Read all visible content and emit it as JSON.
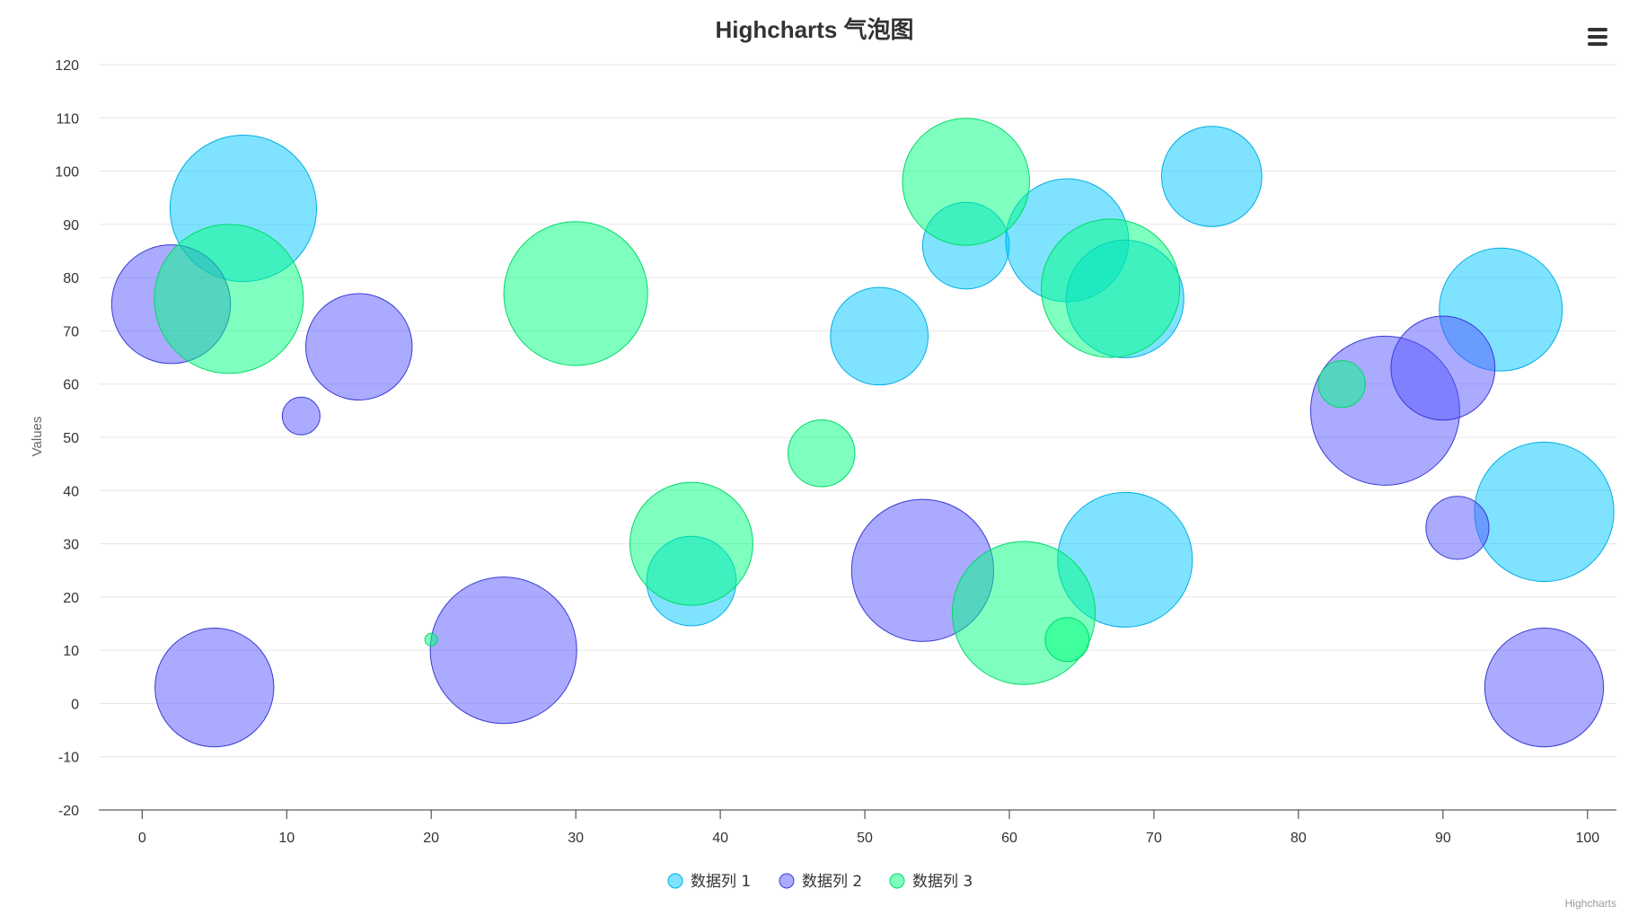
{
  "chart_data": {
    "type": "bubble",
    "title": "Highcharts 气泡图",
    "ylabel": "Values",
    "xlim": [
      -3,
      102
    ],
    "ylim": [
      -20,
      120
    ],
    "x_ticks": [
      0,
      10,
      20,
      30,
      40,
      50,
      60,
      70,
      80,
      90,
      100
    ],
    "y_ticks": [
      -20,
      -10,
      0,
      10,
      20,
      30,
      40,
      50,
      60,
      70,
      80,
      90,
      100,
      110,
      120
    ],
    "grid": "horizontal",
    "legend_position": "bottom-center",
    "series": [
      {
        "name": "数据列 1",
        "color": "#00c8ff",
        "stroke": "#00aee6",
        "points": [
          {
            "x": 7,
            "y": 93,
            "z": 85
          },
          {
            "x": 57,
            "y": 86,
            "z": 30
          },
          {
            "x": 64,
            "y": 87,
            "z": 60
          },
          {
            "x": 68,
            "y": 76,
            "z": 55
          },
          {
            "x": 74,
            "y": 99,
            "z": 40
          },
          {
            "x": 51,
            "y": 69,
            "z": 38
          },
          {
            "x": 38,
            "y": 23,
            "z": 32
          },
          {
            "x": 68,
            "y": 27,
            "z": 72
          },
          {
            "x": 94,
            "y": 74,
            "z": 60
          },
          {
            "x": 97,
            "y": 36,
            "z": 77
          }
        ]
      },
      {
        "name": "数据列 2",
        "color": "#5555ff",
        "stroke": "#3a3ad6",
        "points": [
          {
            "x": 2,
            "y": 75,
            "z": 56
          },
          {
            "x": 11,
            "y": 54,
            "z": 6
          },
          {
            "x": 15,
            "y": 67,
            "z": 45
          },
          {
            "x": 5,
            "y": 3,
            "z": 56
          },
          {
            "x": 25,
            "y": 10,
            "z": 85
          },
          {
            "x": 54,
            "y": 25,
            "z": 80
          },
          {
            "x": 86,
            "y": 55,
            "z": 88
          },
          {
            "x": 90,
            "y": 63,
            "z": 43
          },
          {
            "x": 91,
            "y": 33,
            "z": 16
          },
          {
            "x": 97,
            "y": 3,
            "z": 56
          }
        ]
      },
      {
        "name": "数据列 3",
        "color": "#00ff7f",
        "stroke": "#00d968",
        "points": [
          {
            "x": 6,
            "y": 76,
            "z": 88
          },
          {
            "x": 30,
            "y": 77,
            "z": 82
          },
          {
            "x": 20,
            "y": 12,
            "z": 1
          },
          {
            "x": 38,
            "y": 30,
            "z": 60
          },
          {
            "x": 47,
            "y": 47,
            "z": 18
          },
          {
            "x": 57,
            "y": 98,
            "z": 64
          },
          {
            "x": 67,
            "y": 78,
            "z": 76
          },
          {
            "x": 61,
            "y": 17,
            "z": 81
          },
          {
            "x": 64,
            "y": 12,
            "z": 8
          },
          {
            "x": 83,
            "y": 60,
            "z": 9
          }
        ]
      }
    ]
  },
  "credits": "Highcharts",
  "menu_icon": "hamburger-menu-icon"
}
